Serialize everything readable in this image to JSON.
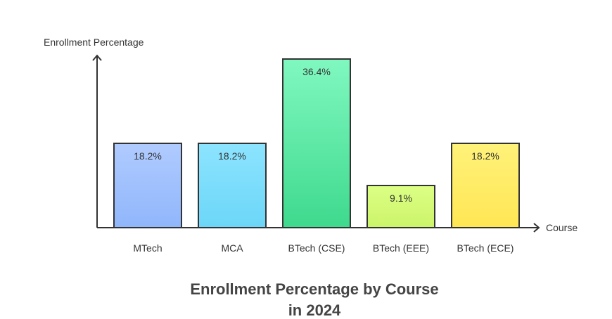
{
  "chart_data": {
    "type": "bar",
    "title": [
      "Enrollment Percentage by Course",
      "in 2024"
    ],
    "xlabel": "Course",
    "ylabel": "Enrollment Percentage",
    "ylim": [
      0,
      40
    ],
    "grid": false,
    "categories": [
      "MTech",
      "MCA",
      "BTech (CSE)",
      "BTech (EEE)",
      "BTech (ECE)"
    ],
    "values": [
      18.2,
      18.2,
      36.4,
      9.1,
      18.2
    ],
    "value_labels": [
      "18.2%",
      "18.2%",
      "36.4%",
      "9.1%",
      "18.2%"
    ],
    "colors": [
      [
        "#b0cbff",
        "#90b6fb"
      ],
      [
        "#8ce4ff",
        "#6cd6f8"
      ],
      [
        "#80f8c0",
        "#3ed98d"
      ],
      [
        "#dcff85",
        "#ccf46a"
      ],
      [
        "#fff27a",
        "#ffe654"
      ]
    ],
    "stroke_color": "#333333",
    "axis_color": "#333333"
  }
}
